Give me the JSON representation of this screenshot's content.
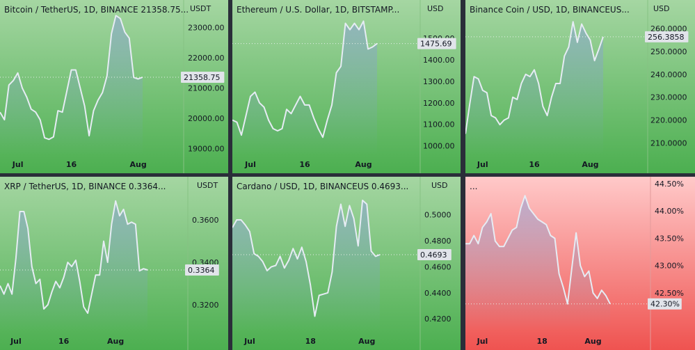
{
  "chart_data": [
    {
      "type": "area",
      "title": "Bitcoin / TetherUS, 1D, BINANCE  21358.75...",
      "unit": "USDT",
      "theme": "green",
      "x_ticks": [
        {
          "label": "Jul",
          "day": 4
        },
        {
          "label": "16",
          "day": 16
        },
        {
          "label": "Aug",
          "day": 31
        }
      ],
      "y_ticks": [
        "23000.00",
        "22000.00",
        "21000.00",
        "20000.00",
        "19000.00"
      ],
      "ylim": [
        18800,
        23500
      ],
      "last_value": "21358.75",
      "last": 21358.75,
      "values": [
        20200,
        19950,
        21100,
        21250,
        21500,
        21000,
        20700,
        20300,
        20200,
        19950,
        19350,
        19300,
        19380,
        20250,
        20200,
        20900,
        21600,
        21600,
        21000,
        20400,
        19420,
        20250,
        20600,
        20850,
        21400,
        22800,
        23400,
        23300,
        22850,
        22650,
        21350,
        21300,
        21358.75
      ]
    },
    {
      "type": "area",
      "title": "Ethereum / U.S. Dollar, 1D, BITSTAMP...",
      "unit": "USD",
      "theme": "green",
      "x_ticks": [
        {
          "label": "Jul",
          "day": 4
        },
        {
          "label": "16",
          "day": 16
        },
        {
          "label": "Aug",
          "day": 29
        }
      ],
      "y_ticks": [
        "1500.00",
        "1400.00",
        "1300.00",
        "1200.00",
        "1100.00",
        "1000.00"
      ],
      "ylim": [
        960,
        1620
      ],
      "last_value": "1475.69",
      "last": 1475.69,
      "values": [
        1120,
        1110,
        1050,
        1140,
        1230,
        1250,
        1200,
        1180,
        1120,
        1080,
        1070,
        1080,
        1170,
        1150,
        1190,
        1230,
        1190,
        1190,
        1130,
        1080,
        1040,
        1120,
        1190,
        1340,
        1370,
        1570,
        1540,
        1570,
        1540,
        1580,
        1450,
        1460,
        1475.69
      ]
    },
    {
      "type": "area",
      "title": "Binance Coin / USD, 1D, BINANCEUS...",
      "unit": "USD",
      "theme": "green",
      "x_ticks": [
        {
          "label": "Jul",
          "day": 4
        },
        {
          "label": "16",
          "day": 16
        },
        {
          "label": "Aug",
          "day": 29
        }
      ],
      "y_ticks": [
        "260.0000",
        "250.0000",
        "240.0000",
        "230.0000",
        "220.0000",
        "210.0000"
      ],
      "ylim": [
        205,
        267
      ],
      "last_value": "256.3858",
      "last": 256.3858,
      "values": [
        214,
        227,
        239,
        238,
        233,
        232,
        222,
        221,
        218,
        220,
        221,
        230,
        229,
        236,
        240,
        239,
        242,
        236,
        226,
        222,
        230,
        236,
        236,
        248,
        252,
        263,
        254,
        262,
        258,
        255,
        246,
        251,
        256.3858
      ]
    },
    {
      "type": "area",
      "title": "XRP / TetherUS, 1D, BINANCE  0.3364...",
      "unit": "USDT",
      "theme": "green",
      "x_ticks": [
        {
          "label": "Jul",
          "day": 4
        },
        {
          "label": "16",
          "day": 16
        },
        {
          "label": "Aug",
          "day": 29
        }
      ],
      "y_ticks": [
        "0.3600",
        "0.3400",
        "0.3200"
      ],
      "ylim": [
        0.3075,
        0.3745
      ],
      "last_value": "0.3364",
      "last": 0.3364,
      "values": [
        0.329,
        0.325,
        0.33,
        0.325,
        0.342,
        0.364,
        0.364,
        0.356,
        0.338,
        0.33,
        0.332,
        0.318,
        0.32,
        0.326,
        0.331,
        0.328,
        0.333,
        0.34,
        0.338,
        0.341,
        0.331,
        0.319,
        0.316,
        0.325,
        0.334,
        0.334,
        0.35,
        0.34,
        0.358,
        0.369,
        0.362,
        0.365,
        0.358,
        0.359,
        0.358,
        0.336,
        0.337,
        0.3364
      ]
    },
    {
      "type": "area",
      "title": "Cardano / USD, 1D, BINANCEUS  0.4693...",
      "unit": "USD",
      "theme": "green",
      "x_ticks": [
        {
          "label": "Jul",
          "day": 4
        },
        {
          "label": "18",
          "day": 18
        },
        {
          "label": "Aug",
          "day": 31
        }
      ],
      "y_ticks": [
        "0.5000",
        "0.4800",
        "0.4600",
        "0.4400",
        "0.4200"
      ],
      "ylim": [
        0.4105,
        0.5195
      ],
      "last_value": "0.4693",
      "last": 0.4693,
      "values": [
        0.49,
        0.496,
        0.496,
        0.492,
        0.487,
        0.47,
        0.468,
        0.464,
        0.457,
        0.46,
        0.461,
        0.468,
        0.459,
        0.465,
        0.474,
        0.466,
        0.475,
        0.464,
        0.446,
        0.422,
        0.438,
        0.439,
        0.44,
        0.456,
        0.491,
        0.508,
        0.491,
        0.507,
        0.497,
        0.476,
        0.511,
        0.508,
        0.472,
        0.468,
        0.4693
      ]
    },
    {
      "type": "line",
      "title": "...",
      "unit": "",
      "theme": "red",
      "x_ticks": [
        {
          "label": "Jul",
          "day": 4
        },
        {
          "label": "18",
          "day": 18
        },
        {
          "label": "Aug",
          "day": 30
        }
      ],
      "y_ticks": [
        "44.50%",
        "44.00%",
        "43.50%",
        "43.00%",
        "42.50%"
      ],
      "ylim": [
        41.8,
        44.55
      ],
      "last_value": "42.30%",
      "last": 42.3,
      "values": [
        43.4,
        43.4,
        43.55,
        43.4,
        43.7,
        43.8,
        43.95,
        43.45,
        43.35,
        43.35,
        43.5,
        43.65,
        43.7,
        44.05,
        44.28,
        44.05,
        43.95,
        43.85,
        43.8,
        43.75,
        43.55,
        43.5,
        42.85,
        42.6,
        42.3,
        42.95,
        43.6,
        43.0,
        42.8,
        42.9,
        42.5,
        42.4,
        42.55,
        42.45,
        42.3
      ]
    }
  ]
}
